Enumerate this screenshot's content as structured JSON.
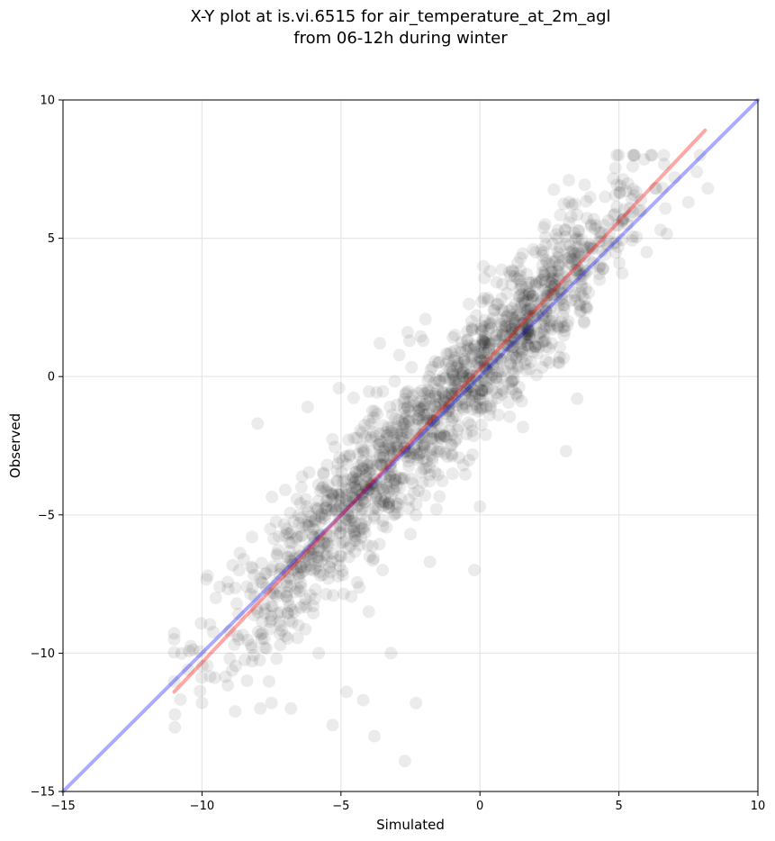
{
  "chart_data": {
    "type": "scatter",
    "title": "X-Y plot at is.vi.6515 for air_temperature_at_2m_agl",
    "subtitle": "from 06-12h during winter",
    "xlabel": "Simulated",
    "ylabel": "Observed",
    "xlim": [
      -15,
      10
    ],
    "ylim": [
      -15,
      10
    ],
    "xticks": [
      -15,
      -10,
      -5,
      0,
      5,
      10
    ],
    "yticks": [
      -15,
      -10,
      -5,
      0,
      5,
      10
    ],
    "xtick_labels": [
      "−15",
      "−10",
      "−5",
      "0",
      "5",
      "10"
    ],
    "ytick_labels": [
      "−15",
      "−10",
      "−5",
      "0",
      "5",
      "10"
    ],
    "grid": true,
    "legend": "none",
    "marker_color": "#000000",
    "marker_alpha": 0.08,
    "reference_line": {
      "x": [
        -15,
        10
      ],
      "y": [
        -15,
        10
      ],
      "color": "#0000ff",
      "alpha": 0.33
    },
    "regression_line": {
      "x": [
        -11,
        8.1
      ],
      "y": [
        -11.4,
        8.9
      ],
      "color": "#ff0000",
      "alpha": 0.35
    },
    "scatter_anchor_points": [
      {
        "x": -11.0,
        "y": -9.5
      },
      {
        "x": -10.5,
        "y": -10.6
      },
      {
        "x": -10.0,
        "y": -11.8
      },
      {
        "x": -9.8,
        "y": -7.2
      },
      {
        "x": -9.5,
        "y": -8.0
      },
      {
        "x": -9.0,
        "y": -9.2
      },
      {
        "x": -8.5,
        "y": -6.6
      },
      {
        "x": -8.2,
        "y": -5.8
      },
      {
        "x": -8.0,
        "y": -1.7
      },
      {
        "x": -7.9,
        "y": -12.0
      },
      {
        "x": -7.5,
        "y": -11.8
      },
      {
        "x": -7.2,
        "y": -9.3
      },
      {
        "x": -7.0,
        "y": -4.1
      },
      {
        "x": -6.8,
        "y": -12.0
      },
      {
        "x": -6.5,
        "y": -5.3
      },
      {
        "x": -6.2,
        "y": -1.1
      },
      {
        "x": -6.0,
        "y": -8.3
      },
      {
        "x": -5.8,
        "y": -10.0
      },
      {
        "x": -5.5,
        "y": -3.2
      },
      {
        "x": -5.3,
        "y": -12.6
      },
      {
        "x": -5.0,
        "y": -6.5
      },
      {
        "x": -4.8,
        "y": -11.4
      },
      {
        "x": -4.5,
        "y": -4.0
      },
      {
        "x": -4.2,
        "y": -11.7
      },
      {
        "x": -4.0,
        "y": -1.6
      },
      {
        "x": -3.8,
        "y": -13.0
      },
      {
        "x": -3.5,
        "y": -7.0
      },
      {
        "x": -3.6,
        "y": 1.2
      },
      {
        "x": -3.2,
        "y": -10.0
      },
      {
        "x": -3.0,
        "y": -2.5
      },
      {
        "x": -2.7,
        "y": -13.9
      },
      {
        "x": -2.5,
        "y": -5.7
      },
      {
        "x": -2.6,
        "y": 1.6
      },
      {
        "x": -2.3,
        "y": -11.8
      },
      {
        "x": -2.0,
        "y": -1.0
      },
      {
        "x": -1.8,
        "y": -6.7
      },
      {
        "x": -1.5,
        "y": 0.5
      },
      {
        "x": -1.2,
        "y": -2.2
      },
      {
        "x": -0.9,
        "y": 1.5
      },
      {
        "x": -0.6,
        "y": -3.2
      },
      {
        "x": -0.3,
        "y": 2.0
      },
      {
        "x": -0.2,
        "y": -7.0
      },
      {
        "x": 0.0,
        "y": -4.7
      },
      {
        "x": 0.2,
        "y": 0.5
      },
      {
        "x": 0.5,
        "y": 1.0
      },
      {
        "x": 0.8,
        "y": 0.2
      },
      {
        "x": 1.0,
        "y": 2.2
      },
      {
        "x": 1.2,
        "y": 3.8
      },
      {
        "x": 1.5,
        "y": -0.9
      },
      {
        "x": 1.8,
        "y": 1.5
      },
      {
        "x": 2.0,
        "y": 4.5
      },
      {
        "x": 2.3,
        "y": 2.8
      },
      {
        "x": 2.5,
        "y": 0.5
      },
      {
        "x": 2.8,
        "y": 5.0
      },
      {
        "x": 3.0,
        "y": 3.0
      },
      {
        "x": 3.1,
        "y": -2.7
      },
      {
        "x": 3.2,
        "y": 7.1
      },
      {
        "x": 3.5,
        "y": 4.0
      },
      {
        "x": 3.5,
        "y": -0.8
      },
      {
        "x": 3.8,
        "y": 2.5
      },
      {
        "x": 4.0,
        "y": 5.5
      },
      {
        "x": 4.3,
        "y": 3.5
      },
      {
        "x": 4.5,
        "y": 6.5
      },
      {
        "x": 4.8,
        "y": 4.8
      },
      {
        "x": 5.0,
        "y": 8.0
      },
      {
        "x": 5.3,
        "y": 5.5
      },
      {
        "x": 5.5,
        "y": 7.6
      },
      {
        "x": 5.8,
        "y": 6.0
      },
      {
        "x": 6.0,
        "y": 4.5
      },
      {
        "x": 6.3,
        "y": 6.8
      },
      {
        "x": 6.5,
        "y": 5.3
      },
      {
        "x": 7.0,
        "y": 7.2
      },
      {
        "x": 7.5,
        "y": 6.3
      },
      {
        "x": 7.8,
        "y": 7.4
      },
      {
        "x": 8.2,
        "y": 6.8
      },
      {
        "x": 0.6,
        "y": 2.6
      },
      {
        "x": 1.3,
        "y": -0.6
      },
      {
        "x": -1.0,
        "y": -0.5
      },
      {
        "x": -4.0,
        "y": -8.5
      },
      {
        "x": -7.5,
        "y": -7.0
      },
      {
        "x": -9.0,
        "y": -10.2
      }
    ]
  }
}
